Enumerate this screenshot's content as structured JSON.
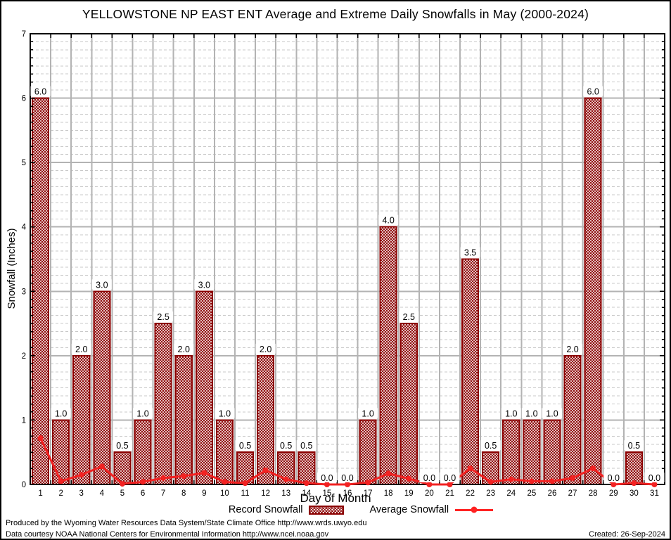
{
  "title": "YELLOWSTONE NP EAST ENT Average and Extreme Daily Snowfalls in May (2000-2024)",
  "chart_data": {
    "type": "bar",
    "title": "YELLOWSTONE NP EAST ENT Average and Extreme Daily Snowfalls in May (2000-2024)",
    "xlabel": "Day of Month",
    "ylabel": "Snowfall (Inches)",
    "x": [
      1,
      2,
      3,
      4,
      5,
      6,
      7,
      8,
      9,
      10,
      11,
      12,
      13,
      14,
      15,
      16,
      17,
      18,
      19,
      20,
      21,
      22,
      23,
      24,
      25,
      26,
      27,
      28,
      29,
      30,
      31
    ],
    "series": [
      {
        "name": "Record Snowfall",
        "type": "bar",
        "values": [
          6.0,
          1.0,
          2.0,
          3.0,
          0.5,
          1.0,
          2.5,
          2.0,
          3.0,
          1.0,
          0.5,
          2.0,
          0.5,
          0.5,
          0.0,
          0.0,
          1.0,
          4.0,
          2.5,
          0.0,
          0.0,
          3.5,
          0.5,
          1.0,
          1.0,
          1.0,
          2.0,
          6.0,
          0.0,
          0.5,
          0.0
        ]
      },
      {
        "name": "Average Snowfall",
        "type": "line",
        "values": [
          0.72,
          0.05,
          0.15,
          0.28,
          0.01,
          0.04,
          0.1,
          0.13,
          0.18,
          0.04,
          0.02,
          0.22,
          0.08,
          0.02,
          0.0,
          0.0,
          0.03,
          0.17,
          0.09,
          0.0,
          0.0,
          0.25,
          0.04,
          0.08,
          0.05,
          0.05,
          0.1,
          0.25,
          0.0,
          0.02,
          0.0
        ]
      }
    ],
    "ylim": [
      0,
      7
    ],
    "yticks": [
      0,
      1,
      2,
      3,
      4,
      5,
      6,
      7
    ],
    "minor_y_step": 0.125,
    "grid": true,
    "legend_position": "bottom",
    "colors": {
      "bar_edge": "#8b0000",
      "bar_hatch": "#8b0000",
      "average_line": "#f22222",
      "grid_major": "#b3b3b3",
      "grid_minor": "#c9c9c9",
      "axis": "#000000"
    }
  },
  "legend": {
    "record_label": "Record Snowfall",
    "average_label": "Average Snowfall"
  },
  "footer": {
    "line1": "Produced by the Wyoming Water Resources Data System/State Climate Office http://www.wrds.uwyo.edu",
    "line2": "Data courtesy NOAA National Centers for Environmental Information http://www.ncei.noaa.gov",
    "created": "Created: 26-Sep-2024"
  }
}
